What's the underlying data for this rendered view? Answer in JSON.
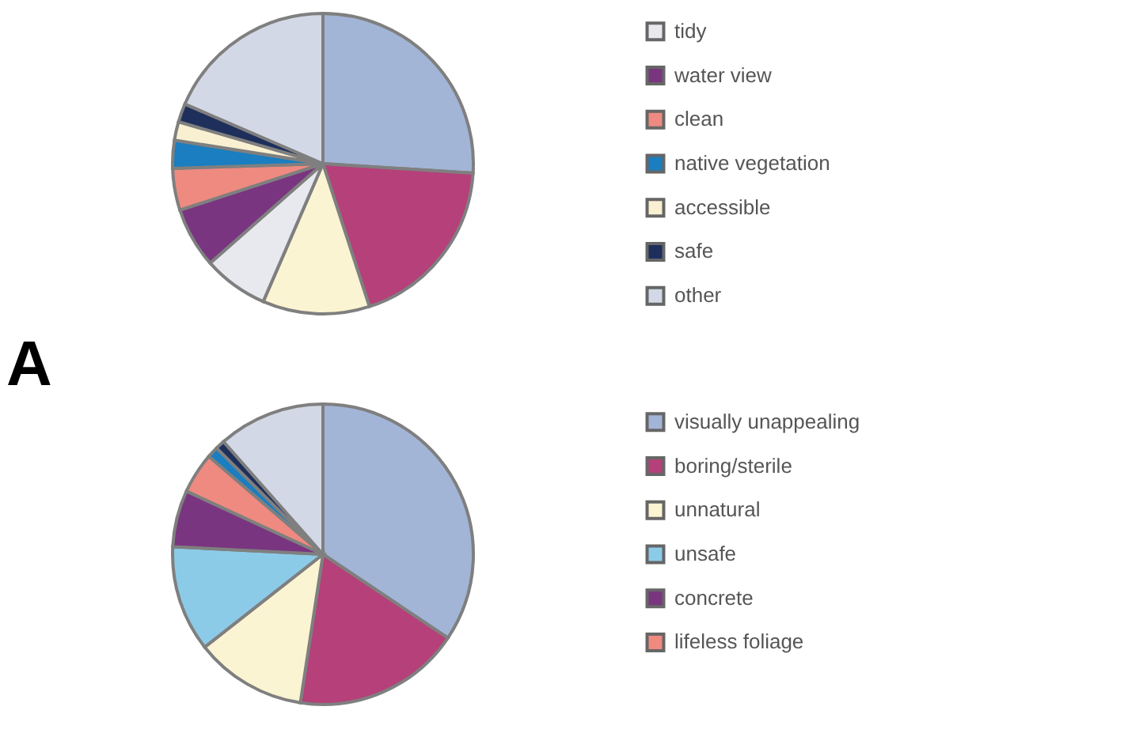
{
  "chart_data": [
    {
      "type": "pie",
      "legend": "right",
      "categories": [
        null,
        null,
        null,
        "tidy",
        "water view",
        "clean",
        "native vegetation",
        "accessible",
        "safe",
        "other"
      ],
      "values": [
        26,
        19,
        11.5,
        7,
        6.5,
        4.5,
        3,
        2,
        2,
        18.5
      ],
      "colors": [
        "#a3b5d6",
        "#b5407a",
        "#fbf4d2",
        "#e8e9ee",
        "#7a3580",
        "#ee8a80",
        "#1a7ec0",
        "#f8f0d0",
        "#1e2f5c",
        "#d3d8e6"
      ]
    },
    {
      "type": "pie",
      "legend": "right",
      "title": "A",
      "categories": [
        "visually unappealing",
        "boring/sterile",
        "unnatural",
        "unsafe",
        "concrete",
        "lifeless foliage",
        null,
        null,
        null
      ],
      "values": [
        34.4,
        18,
        12,
        11.4,
        6.1,
        4.4,
        1.2,
        1,
        11.5
      ],
      "colors": [
        "#a3b5d6",
        "#b5407a",
        "#fbf4d2",
        "#8ccbe8",
        "#7a3580",
        "#ee8a80",
        "#1a7ec0",
        "#1e2f5c",
        "#d3d8e6"
      ]
    }
  ]
}
